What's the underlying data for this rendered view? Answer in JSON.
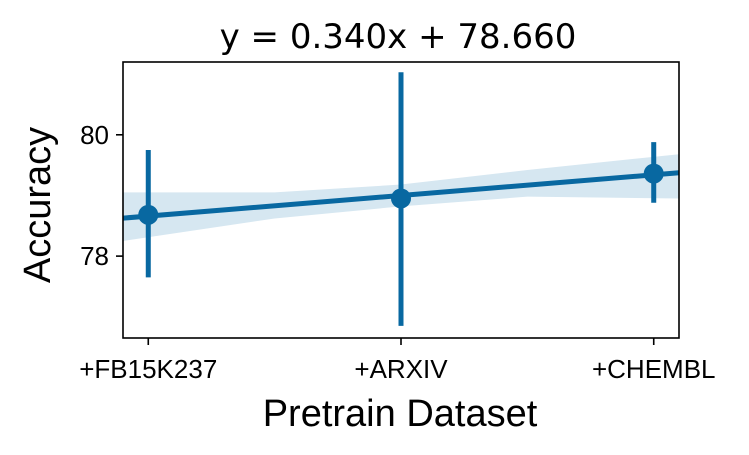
{
  "chart_data": {
    "type": "line",
    "title": "y = 0.340x + 78.660",
    "xlabel": "Pretrain Dataset",
    "ylabel": "Accuracy",
    "categories": [
      "+FB15K237",
      "+ARXIV",
      "+CHEMBL"
    ],
    "x_positions": [
      0,
      1,
      2
    ],
    "yticks": [
      "78",
      "80"
    ],
    "ylim": [
      76.65,
      81.2
    ],
    "xlim": [
      -0.1,
      2.1
    ],
    "points": [
      {
        "category": "+FB15K237",
        "mean": 78.68,
        "ci_low": 77.65,
        "ci_high": 79.75
      },
      {
        "category": "+ARXIV",
        "mean": 78.95,
        "ci_low": 76.85,
        "ci_high": 81.03
      },
      {
        "category": "+CHEMBL",
        "mean": 79.36,
        "ci_low": 78.88,
        "ci_high": 79.88
      }
    ],
    "regression": {
      "slope": 0.34,
      "intercept": 78.66,
      "band": [
        {
          "x": -0.1,
          "low": 78.25,
          "high": 79.05
        },
        {
          "x": 0.5,
          "low": 78.62,
          "high": 79.05
        },
        {
          "x": 1.0,
          "low": 78.82,
          "high": 79.18
        },
        {
          "x": 1.5,
          "low": 78.98,
          "high": 79.42
        },
        {
          "x": 2.1,
          "low": 78.95,
          "high": 79.68
        }
      ]
    },
    "colors": {
      "line": "#0868a1",
      "band": "#d6e7f1",
      "axes": "#000000"
    },
    "grid": false,
    "legend": "none"
  }
}
